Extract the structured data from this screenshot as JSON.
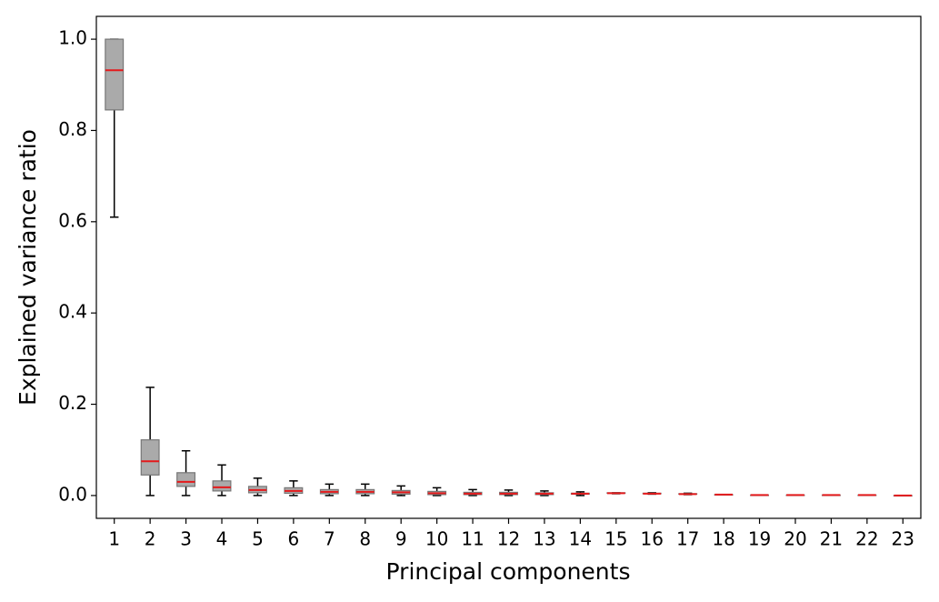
{
  "chart_data": {
    "type": "box",
    "xlabel": "Principal components",
    "ylabel": "Explained variance ratio",
    "categories": [
      "1",
      "2",
      "3",
      "4",
      "5",
      "6",
      "7",
      "8",
      "9",
      "10",
      "11",
      "12",
      "13",
      "14",
      "15",
      "16",
      "17",
      "18",
      "19",
      "20",
      "21",
      "22",
      "23"
    ],
    "whisker_low": [
      0.61,
      0.0,
      0.0,
      0.0,
      0.0,
      0.0,
      0.0,
      0.0,
      0.0,
      0.0,
      0.0,
      0.0,
      0.0,
      0.0,
      0.004,
      0.003,
      0.002,
      0.002,
      0.001,
      0.001,
      0.001,
      0.001,
      0.0
    ],
    "q1": [
      0.845,
      0.045,
      0.02,
      0.01,
      0.006,
      0.005,
      0.004,
      0.004,
      0.003,
      0.002,
      0.002,
      0.002,
      0.002,
      0.003,
      0.005,
      0.004,
      0.003,
      0.002,
      0.001,
      0.001,
      0.001,
      0.001,
      0.0
    ],
    "median": [
      0.932,
      0.075,
      0.03,
      0.018,
      0.012,
      0.01,
      0.008,
      0.008,
      0.007,
      0.005,
      0.004,
      0.004,
      0.004,
      0.004,
      0.005,
      0.004,
      0.003,
      0.002,
      0.001,
      0.001,
      0.001,
      0.001,
      0.0
    ],
    "q3": [
      1.0,
      0.122,
      0.05,
      0.032,
      0.02,
      0.017,
      0.013,
      0.013,
      0.011,
      0.009,
      0.007,
      0.007,
      0.006,
      0.005,
      0.006,
      0.005,
      0.004,
      0.002,
      0.001,
      0.001,
      0.001,
      0.001,
      0.0
    ],
    "whisker_high": [
      1.0,
      0.237,
      0.098,
      0.067,
      0.038,
      0.032,
      0.025,
      0.025,
      0.021,
      0.017,
      0.013,
      0.012,
      0.01,
      0.008,
      0.006,
      0.006,
      0.005,
      0.002,
      0.001,
      0.001,
      0.001,
      0.001,
      0.0
    ],
    "box_color": "#aaaaaa",
    "median_color": "#e41a1c",
    "whisker_color": "#000000",
    "ylim": [
      -0.05,
      1.05
    ],
    "yticks": [
      {
        "value": 0,
        "label": "0.0"
      },
      0.2,
      0.4,
      0.6,
      0.8,
      {
        "value": 1,
        "label": "1.0"
      }
    ]
  }
}
